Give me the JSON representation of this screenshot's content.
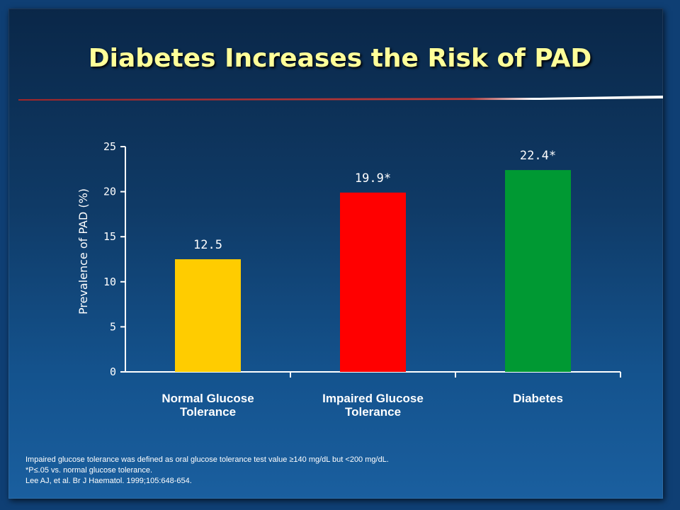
{
  "slide": {
    "title": "Diabetes Increases the Risk of PAD",
    "footnotes": [
      "Impaired glucose tolerance was defined as oral glucose tolerance test value ≥140 mg/dL but <200 mg/dL.",
      "*P≤.05 vs. normal glucose tolerance.",
      "Lee AJ, et al. Br J Haematol. 1999;105:648-654."
    ]
  },
  "chart_data": {
    "type": "bar",
    "title": "Diabetes Increases the Risk of PAD",
    "ylabel": "Prevalence of PAD (%)",
    "xlabel": "",
    "ylim": [
      0,
      25
    ],
    "yticks": [
      0,
      5,
      10,
      15,
      20,
      25
    ],
    "categories": [
      [
        "Normal Glucose",
        "Tolerance"
      ],
      [
        "Impaired Glucose",
        "Tolerance"
      ],
      [
        "Diabetes"
      ]
    ],
    "values": [
      12.5,
      19.9,
      22.4
    ],
    "data_labels": [
      "12.5",
      "19.9*",
      "22.4*"
    ],
    "colors": [
      "#ffcc00",
      "#ff0000",
      "#009933"
    ],
    "grid": false,
    "legend": "none"
  }
}
